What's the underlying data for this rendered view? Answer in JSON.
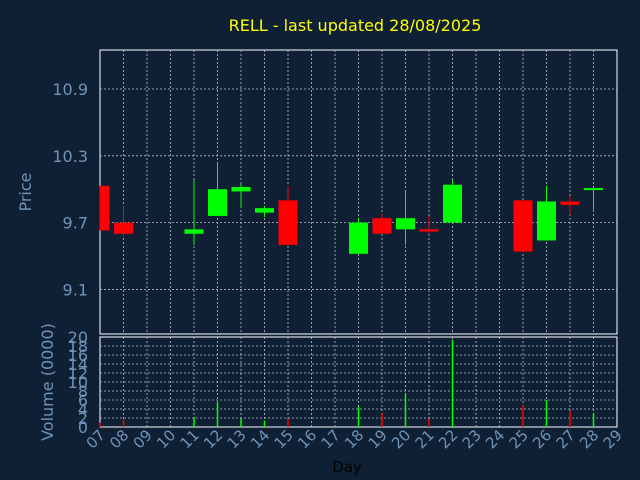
{
  "chart_data": [
    {
      "type": "candlestick",
      "title": "RELL - last updated 28/08/2025",
      "ylabel": "Price",
      "ylim": [
        8.7,
        11.25
      ],
      "yticks": [
        "9.1",
        "9.7",
        "10.3",
        "10.9"
      ],
      "grid": true,
      "colors": {
        "up": "#00ff00",
        "down": "#ff0000",
        "title": "#ffff00",
        "axis_text": "#6f93b8",
        "background": "#0f2034",
        "grid": "#b8c2cc"
      },
      "candles": [
        {
          "day": "07",
          "open": 10.03,
          "close": 9.63,
          "high": 10.03,
          "low": 9.63
        },
        {
          "day": "08",
          "open": 9.7,
          "close": 9.6,
          "high": 9.85,
          "low": 9.58
        },
        {
          "day": "11",
          "open": 9.6,
          "close": 9.64,
          "high": 10.08,
          "low": 9.5
        },
        {
          "day": "12",
          "open": 9.76,
          "close": 10.0,
          "high": 10.23,
          "low": 9.76
        },
        {
          "day": "13",
          "open": 9.98,
          "close": 10.02,
          "high": 10.05,
          "low": 9.83
        },
        {
          "day": "14",
          "open": 9.79,
          "close": 9.83,
          "high": 9.85,
          "low": 9.75
        },
        {
          "day": "15",
          "open": 9.9,
          "close": 9.5,
          "high": 10.03,
          "low": 9.5
        },
        {
          "day": "18",
          "open": 9.42,
          "close": 9.7,
          "high": 9.74,
          "low": 9.42
        },
        {
          "day": "19",
          "open": 9.74,
          "close": 9.6,
          "high": 9.78,
          "low": 9.6
        },
        {
          "day": "20",
          "open": 9.64,
          "close": 9.74,
          "high": 9.98,
          "low": 9.5
        },
        {
          "day": "21",
          "open": 9.64,
          "close": 9.62,
          "high": 9.76,
          "low": 9.6
        },
        {
          "day": "22",
          "open": 9.7,
          "close": 10.04,
          "high": 10.08,
          "low": 9.7
        },
        {
          "day": "25",
          "open": 9.9,
          "close": 9.44,
          "high": 9.9,
          "low": 9.44
        },
        {
          "day": "26",
          "open": 9.54,
          "close": 9.89,
          "high": 10.03,
          "low": 9.54
        },
        {
          "day": "27",
          "open": 9.89,
          "close": 9.86,
          "high": 9.94,
          "low": 9.77
        },
        {
          "day": "28",
          "open": 10.0,
          "close": 10.01,
          "high": 10.02,
          "low": 9.8
        }
      ]
    },
    {
      "type": "bar",
      "ylabel": "Volume (0000)",
      "xlabel": "Day",
      "ylim": [
        0,
        20
      ],
      "yticks": [
        "0",
        "2",
        "4",
        "6",
        "8",
        "10",
        "12",
        "14",
        "16",
        "18",
        "20"
      ],
      "xticks": [
        "07",
        "08",
        "09",
        "10",
        "11",
        "12",
        "13",
        "14",
        "15",
        "16",
        "17",
        "18",
        "19",
        "20",
        "21",
        "22",
        "23",
        "24",
        "25",
        "26",
        "27",
        "28",
        "29"
      ],
      "grid": true,
      "volumes": [
        {
          "day": "07",
          "value": 1.0,
          "dir": "down"
        },
        {
          "day": "08",
          "value": 1.6,
          "dir": "down"
        },
        {
          "day": "11",
          "value": 2.2,
          "dir": "up"
        },
        {
          "day": "12",
          "value": 5.4,
          "dir": "up"
        },
        {
          "day": "13",
          "value": 1.8,
          "dir": "up"
        },
        {
          "day": "14",
          "value": 1.4,
          "dir": "up"
        },
        {
          "day": "15",
          "value": 1.8,
          "dir": "down"
        },
        {
          "day": "18",
          "value": 4.6,
          "dir": "up"
        },
        {
          "day": "19",
          "value": 3.0,
          "dir": "down"
        },
        {
          "day": "20",
          "value": 7.2,
          "dir": "up"
        },
        {
          "day": "21",
          "value": 1.8,
          "dir": "down"
        },
        {
          "day": "22",
          "value": 19.4,
          "dir": "up"
        },
        {
          "day": "25",
          "value": 4.8,
          "dir": "down"
        },
        {
          "day": "26",
          "value": 6.0,
          "dir": "up"
        },
        {
          "day": "27",
          "value": 3.6,
          "dir": "down"
        },
        {
          "day": "28",
          "value": 3.0,
          "dir": "up"
        }
      ]
    }
  ]
}
